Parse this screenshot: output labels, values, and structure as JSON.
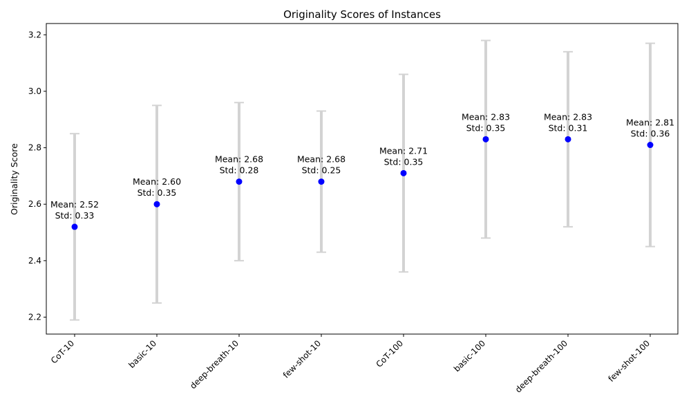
{
  "chart_data": {
    "type": "scatter",
    "title": "Originality Scores of Instances",
    "xlabel": "",
    "ylabel": "Originality Score",
    "ylim": [
      2.14,
      3.24
    ],
    "yticks": [
      "2.2",
      "2.4",
      "2.6",
      "2.8",
      "3.0",
      "3.2"
    ],
    "grid": false,
    "categories": [
      "CoT-10",
      "basic-10",
      "deep-breath-10",
      "few-shot-10",
      "CoT-100",
      "basic-100",
      "deep-breath-100",
      "few-shot-100"
    ],
    "means": [
      2.52,
      2.6,
      2.68,
      2.68,
      2.71,
      2.83,
      2.83,
      2.81
    ],
    "stds": [
      0.33,
      0.35,
      0.28,
      0.25,
      0.35,
      0.35,
      0.31,
      0.36
    ],
    "annotations": [
      [
        "Mean: 2.52",
        "Std: 0.33"
      ],
      [
        "Mean: 2.60",
        "Std: 0.35"
      ],
      [
        "Mean: 2.68",
        "Std: 0.28"
      ],
      [
        "Mean: 2.68",
        "Std: 0.25"
      ],
      [
        "Mean: 2.71",
        "Std: 0.35"
      ],
      [
        "Mean: 2.83",
        "Std: 0.35"
      ],
      [
        "Mean: 2.83",
        "Std: 0.31"
      ],
      [
        "Mean: 2.81",
        "Std: 0.36"
      ]
    ],
    "colors": {
      "marker": "#0000ff",
      "errorbar": "#d3d3d3",
      "axes": "#000000"
    }
  }
}
